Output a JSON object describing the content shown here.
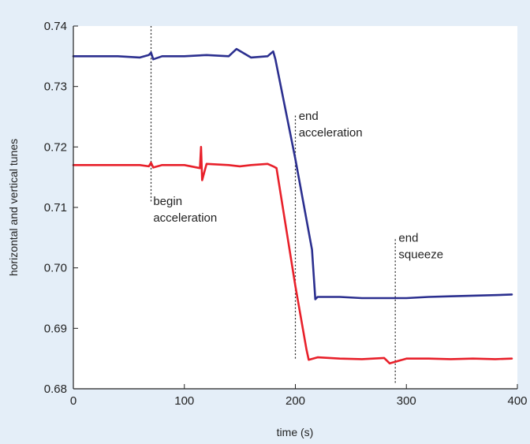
{
  "chart_data": {
    "type": "line",
    "title": "",
    "xlabel": "time (s)",
    "ylabel": "horizontal and vertical tunes",
    "xlim": [
      0,
      400
    ],
    "ylim": [
      0.68,
      0.74
    ],
    "xticks": [
      0,
      100,
      200,
      300,
      400
    ],
    "xtick_labels": [
      "0",
      "100",
      "200",
      "300",
      "400"
    ],
    "yticks": [
      0.68,
      0.69,
      0.7,
      0.71,
      0.72,
      0.73,
      0.74
    ],
    "ytick_labels": [
      "0.68",
      "0.69",
      "0.70",
      "0.71",
      "0.72",
      "0.73",
      "0.74"
    ],
    "grid": false,
    "background_color": "#e4eef8",
    "plot_background_color": "#ffffff",
    "series": [
      {
        "color": "#2b2f8f",
        "x": [
          0,
          20,
          40,
          60,
          68,
          70,
          72,
          80,
          100,
          120,
          140,
          147,
          160,
          175,
          180,
          182,
          200,
          215,
          218,
          220,
          240,
          260,
          280,
          300,
          320,
          340,
          360,
          380,
          395
        ],
        "y": [
          0.735,
          0.735,
          0.735,
          0.7348,
          0.7352,
          0.7356,
          0.7345,
          0.735,
          0.735,
          0.7352,
          0.735,
          0.7362,
          0.7348,
          0.735,
          0.7358,
          0.7345,
          0.718,
          0.703,
          0.6948,
          0.6952,
          0.6952,
          0.695,
          0.695,
          0.695,
          0.6952,
          0.6953,
          0.6954,
          0.6955,
          0.6956
        ]
      },
      {
        "color": "#e8202a",
        "x": [
          0,
          20,
          40,
          60,
          68,
          70,
          72,
          80,
          100,
          114,
          115,
          116,
          120,
          140,
          150,
          160,
          175,
          180,
          183,
          200,
          210,
          212,
          220,
          240,
          260,
          280,
          285,
          300,
          320,
          340,
          360,
          380,
          395
        ],
        "y": [
          0.717,
          0.717,
          0.717,
          0.717,
          0.7168,
          0.7174,
          0.7166,
          0.717,
          0.717,
          0.7165,
          0.72,
          0.7145,
          0.7172,
          0.717,
          0.7168,
          0.717,
          0.7172,
          0.7168,
          0.7165,
          0.697,
          0.6865,
          0.6848,
          0.6852,
          0.685,
          0.6849,
          0.6851,
          0.6842,
          0.685,
          0.685,
          0.6849,
          0.685,
          0.6849,
          0.685
        ]
      }
    ],
    "annotations": [
      {
        "x": 70,
        "line_y": [
          0.711,
          0.74
        ],
        "lines": [
          "begin",
          "acceleration"
        ],
        "text_y": 0.7104,
        "text_anchor_x": 72
      },
      {
        "x": 200,
        "line_y": [
          0.685,
          0.7255
        ],
        "lines": [
          "end",
          "acceleration"
        ],
        "text_y": 0.7245,
        "text_anchor_x": 203
      },
      {
        "x": 290,
        "line_y": [
          0.681,
          0.705
        ],
        "lines": [
          "end",
          "squeeze"
        ],
        "text_y": 0.7043,
        "text_anchor_x": 293
      }
    ]
  }
}
